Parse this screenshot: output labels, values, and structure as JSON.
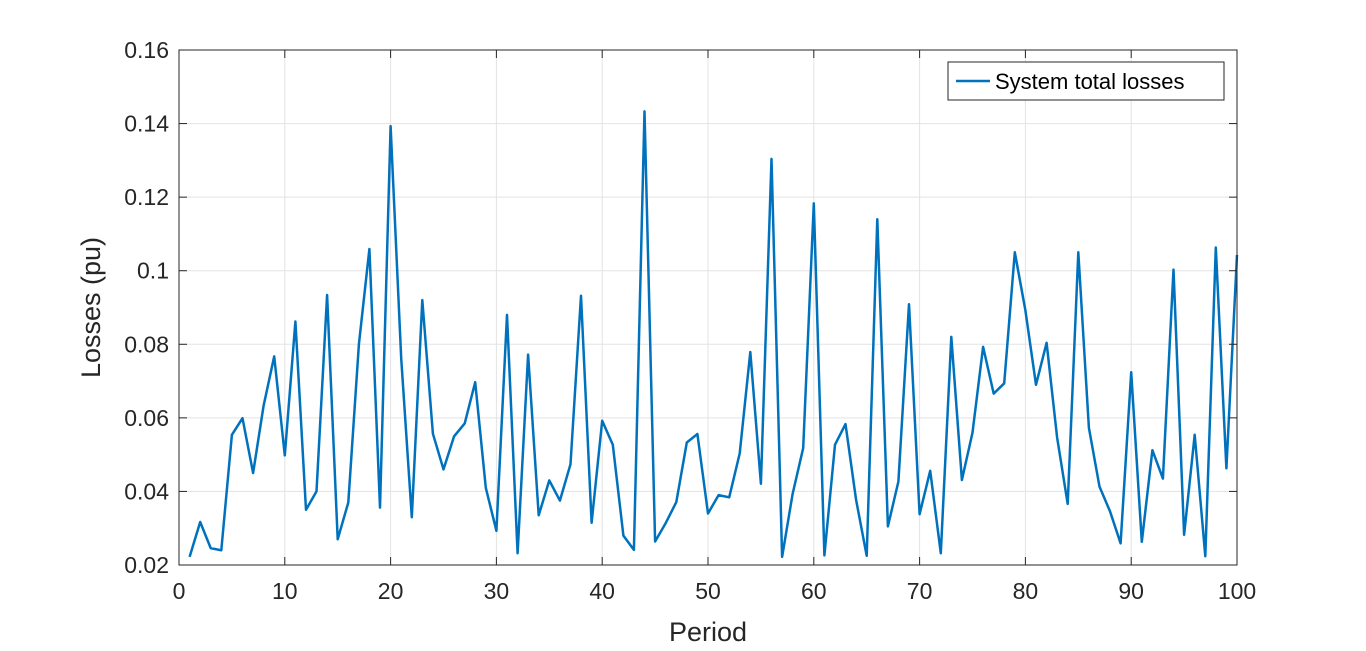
{
  "chart_data": {
    "type": "line",
    "xlabel": "Period",
    "ylabel": "Losses (pu)",
    "xlim": [
      0,
      100
    ],
    "ylim": [
      0.02,
      0.16
    ],
    "xticks": [
      0,
      10,
      20,
      30,
      40,
      50,
      60,
      70,
      80,
      90,
      100
    ],
    "xtick_labels": [
      "0",
      "10",
      "20",
      "30",
      "40",
      "50",
      "60",
      "70",
      "80",
      "90",
      "100"
    ],
    "yticks": [
      0.02,
      0.04,
      0.06,
      0.08,
      0.1,
      0.12,
      0.14,
      0.16
    ],
    "ytick_labels": [
      "0.02",
      "0.04",
      "0.06",
      "0.08",
      "0.1",
      "0.12",
      "0.14",
      "0.16"
    ],
    "grid": true,
    "legend_position": "top-right",
    "series": [
      {
        "name": "System total losses",
        "color": "#0072BD",
        "x": [
          1,
          2,
          3,
          4,
          5,
          6,
          7,
          8,
          9,
          10,
          11,
          12,
          13,
          14,
          15,
          16,
          17,
          18,
          19,
          20,
          21,
          22,
          23,
          24,
          25,
          26,
          27,
          28,
          29,
          30,
          31,
          32,
          33,
          34,
          35,
          36,
          37,
          38,
          39,
          40,
          41,
          42,
          43,
          44,
          45,
          46,
          47,
          48,
          49,
          50,
          51,
          52,
          53,
          54,
          55,
          56,
          57,
          58,
          59,
          60,
          61,
          62,
          63,
          64,
          65,
          66,
          67,
          68,
          69,
          70,
          71,
          72,
          73,
          74,
          75,
          76,
          77,
          78,
          79,
          80,
          81,
          82,
          83,
          84,
          85,
          86,
          87,
          88,
          89,
          90,
          91,
          92,
          93,
          94,
          95,
          96,
          97,
          98,
          99,
          100
        ],
        "y": [
          0.0222,
          0.0317,
          0.0246,
          0.024,
          0.0554,
          0.0599,
          0.045,
          0.0633,
          0.0767,
          0.0498,
          0.0862,
          0.035,
          0.04,
          0.0934,
          0.027,
          0.037,
          0.08,
          0.1059,
          0.0356,
          0.1393,
          0.0762,
          0.033,
          0.092,
          0.0557,
          0.046,
          0.055,
          0.0585,
          0.0697,
          0.041,
          0.0293,
          0.088,
          0.0232,
          0.0772,
          0.0335,
          0.043,
          0.0375,
          0.0474,
          0.0932,
          0.0315,
          0.0592,
          0.0527,
          0.028,
          0.0241,
          0.1433,
          0.0264,
          0.0314,
          0.0371,
          0.0533,
          0.0556,
          0.034,
          0.039,
          0.0384,
          0.0503,
          0.0779,
          0.0421,
          0.1304,
          0.0222,
          0.0393,
          0.0518,
          0.1183,
          0.0226,
          0.0527,
          0.0583,
          0.0377,
          0.0225,
          0.114,
          0.0305,
          0.0427,
          0.0909,
          0.0338,
          0.0456,
          0.0232,
          0.082,
          0.0431,
          0.056,
          0.0793,
          0.0666,
          0.0694,
          0.105,
          0.0892,
          0.069,
          0.0804,
          0.0547,
          0.0366,
          0.105,
          0.0573,
          0.0413,
          0.0346,
          0.0259,
          0.0724,
          0.0263,
          0.0512,
          0.0435,
          0.1003,
          0.0282,
          0.0554,
          0.0224,
          0.1063,
          0.0463,
          0.1043
        ]
      }
    ]
  }
}
